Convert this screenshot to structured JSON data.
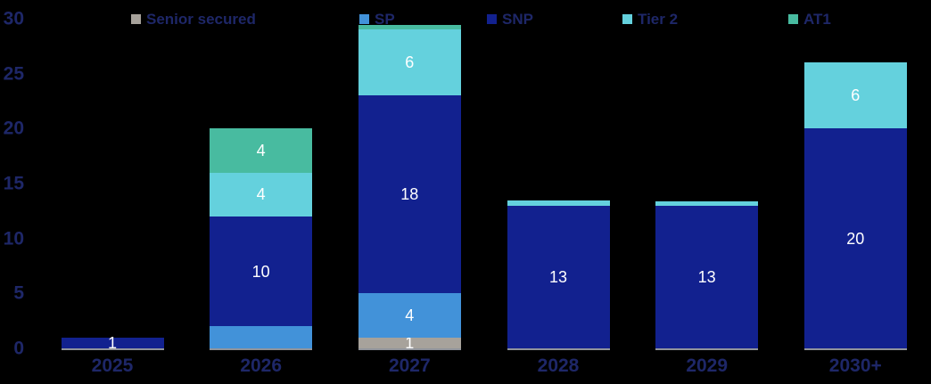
{
  "chart_data": {
    "type": "bar",
    "stacked": true,
    "title": "",
    "xlabel": "",
    "ylabel": "",
    "categories": [
      "2025",
      "2026",
      "2027",
      "2028",
      "2029",
      "2030+"
    ],
    "series": [
      {
        "name": "Senior secured",
        "color": "#a7a29b",
        "values": [
          0,
          0,
          1,
          0,
          0,
          0
        ],
        "labels": [
          "",
          "",
          "1",
          "",
          "",
          ""
        ]
      },
      {
        "name": "SP",
        "color": "#4292d9",
        "values": [
          0,
          2,
          4,
          0,
          0,
          0
        ],
        "labels": [
          "",
          "",
          "4",
          "",
          "",
          ""
        ]
      },
      {
        "name": "SNP",
        "color": "#12218f",
        "values": [
          1,
          10,
          18,
          13,
          13,
          20
        ],
        "labels": [
          "1",
          "10",
          "18",
          "13",
          "13",
          "20"
        ]
      },
      {
        "name": "Tier 2",
        "color": "#64d1dd",
        "values": [
          0,
          4,
          6,
          0.5,
          0.4,
          6
        ],
        "labels": [
          "",
          "4",
          "6",
          "",
          "",
          "6"
        ]
      },
      {
        "name": "AT1",
        "color": "#48bba0",
        "values": [
          0,
          4,
          0.4,
          0,
          0,
          0
        ],
        "labels": [
          "",
          "4",
          "",
          "",
          "",
          ""
        ]
      }
    ],
    "ylim": [
      0,
      30
    ],
    "yticks": [
      0,
      5,
      10,
      15,
      20,
      25,
      30
    ],
    "legend_position": "top",
    "grid": false
  },
  "colors": {
    "background": "#000000",
    "axis_text": "#1e2768",
    "bar_value_label": "#ffffff"
  }
}
